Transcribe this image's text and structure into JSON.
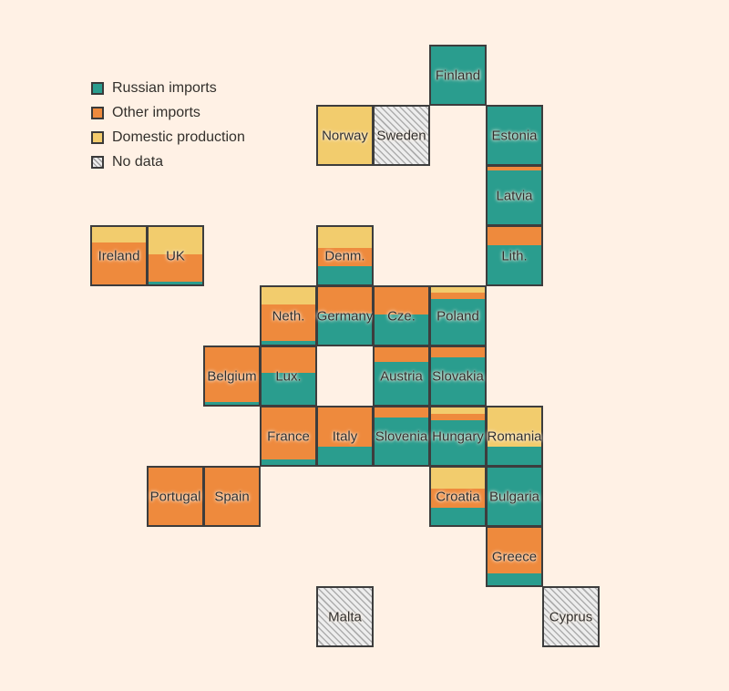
{
  "chart_data": {
    "type": "bar",
    "subtype": "tile-grid-cartogram, 100% stacked per country",
    "unit": "share of gas supply, % (estimated from tile areas)",
    "title": "",
    "legend_position": "top-left",
    "legend": [
      {
        "id": "russian",
        "label": "Russian imports",
        "color": "#2a9d8e"
      },
      {
        "id": "other",
        "label": "Other imports",
        "color": "#ee8a3d"
      },
      {
        "id": "domestic",
        "label": "Domestic production",
        "color": "#f2cc6d"
      },
      {
        "id": "no_data",
        "label": "No data",
        "color": "hatch"
      }
    ],
    "countries": [
      {
        "id": "finland",
        "label": "Finland",
        "col": 6,
        "row": 0,
        "domestic": 0,
        "other": 0,
        "russian": 100
      },
      {
        "id": "norway",
        "label": "Norway",
        "col": 4,
        "row": 1,
        "domestic": 100,
        "other": 0,
        "russian": 0
      },
      {
        "id": "sweden",
        "label": "Sweden",
        "col": 5,
        "row": 1,
        "no_data": true
      },
      {
        "id": "estonia",
        "label": "Estonia",
        "col": 7,
        "row": 1,
        "domestic": 0,
        "other": 0,
        "russian": 100
      },
      {
        "id": "latvia",
        "label": "Latvia",
        "col": 7,
        "row": 2,
        "domestic": 0,
        "other": 6,
        "russian": 94
      },
      {
        "id": "ireland",
        "label": "Ireland",
        "col": 0,
        "row": 3,
        "domestic": 27,
        "other": 73,
        "russian": 0
      },
      {
        "id": "uk",
        "label": "UK",
        "col": 1,
        "row": 3,
        "domestic": 48,
        "other": 48,
        "russian": 4
      },
      {
        "id": "denmark",
        "label": "Denm.",
        "col": 4,
        "row": 3,
        "domestic": 36,
        "other": 33,
        "russian": 31
      },
      {
        "id": "lithuania",
        "label": "Lith.",
        "col": 7,
        "row": 3,
        "domestic": 0,
        "other": 31,
        "russian": 69
      },
      {
        "id": "netherlands",
        "label": "Neth.",
        "col": 3,
        "row": 4,
        "domestic": 30,
        "other": 64,
        "russian": 6
      },
      {
        "id": "germany",
        "label": "Germany",
        "col": 4,
        "row": 4,
        "domestic": 0,
        "other": 46,
        "russian": 54
      },
      {
        "id": "czechia",
        "label": "Cze.",
        "col": 5,
        "row": 4,
        "domestic": 0,
        "other": 48,
        "russian": 52
      },
      {
        "id": "poland",
        "label": "Poland",
        "col": 6,
        "row": 4,
        "domestic": 10,
        "other": 11,
        "russian": 79
      },
      {
        "id": "belgium",
        "label": "Belgium",
        "col": 2,
        "row": 5,
        "domestic": 0,
        "other": 96,
        "russian": 4
      },
      {
        "id": "luxembourg",
        "label": "Lux.",
        "col": 3,
        "row": 5,
        "domestic": 0,
        "other": 44,
        "russian": 56
      },
      {
        "id": "austria",
        "label": "Austria",
        "col": 5,
        "row": 5,
        "domestic": 0,
        "other": 25,
        "russian": 75
      },
      {
        "id": "slovakia",
        "label": "Slovakia",
        "col": 6,
        "row": 5,
        "domestic": 0,
        "other": 18,
        "russian": 82
      },
      {
        "id": "france",
        "label": "France",
        "col": 3,
        "row": 6,
        "domestic": 0,
        "other": 90,
        "russian": 10
      },
      {
        "id": "italy",
        "label": "Italy",
        "col": 4,
        "row": 6,
        "domestic": 0,
        "other": 68,
        "russian": 32
      },
      {
        "id": "slovenia",
        "label": "Slovenia",
        "col": 5,
        "row": 6,
        "domestic": 0,
        "other": 18,
        "russian": 82
      },
      {
        "id": "hungary",
        "label": "Hungary",
        "col": 6,
        "row": 6,
        "domestic": 11,
        "other": 11,
        "russian": 78
      },
      {
        "id": "romania",
        "label": "Romania",
        "col": 7,
        "row": 6,
        "domestic": 68,
        "other": 0,
        "russian": 32
      },
      {
        "id": "portugal",
        "label": "Portugal",
        "col": 1,
        "row": 7,
        "domestic": 0,
        "other": 100,
        "russian": 0
      },
      {
        "id": "spain",
        "label": "Spain",
        "col": 2,
        "row": 7,
        "domestic": 0,
        "other": 100,
        "russian": 0
      },
      {
        "id": "croatia",
        "label": "Croatia",
        "col": 6,
        "row": 7,
        "domestic": 36,
        "other": 34,
        "russian": 30
      },
      {
        "id": "bulgaria",
        "label": "Bulgaria",
        "col": 7,
        "row": 7,
        "domestic": 0,
        "other": 0,
        "russian": 100
      },
      {
        "id": "greece",
        "label": "Greece",
        "col": 7,
        "row": 8,
        "domestic": 0,
        "other": 80,
        "russian": 20
      },
      {
        "id": "malta",
        "label": "Malta",
        "col": 4,
        "row": 9,
        "no_data": true
      },
      {
        "id": "cyprus",
        "label": "Cyprus",
        "col": 8,
        "row": 9,
        "no_data": true
      }
    ]
  },
  "style": {
    "background": "#fff1e5",
    "tile_border": "#3d3d3d",
    "label_text": "#2f2d2b",
    "hatch_background": "#ededed",
    "hatch_line": "#adadad"
  }
}
